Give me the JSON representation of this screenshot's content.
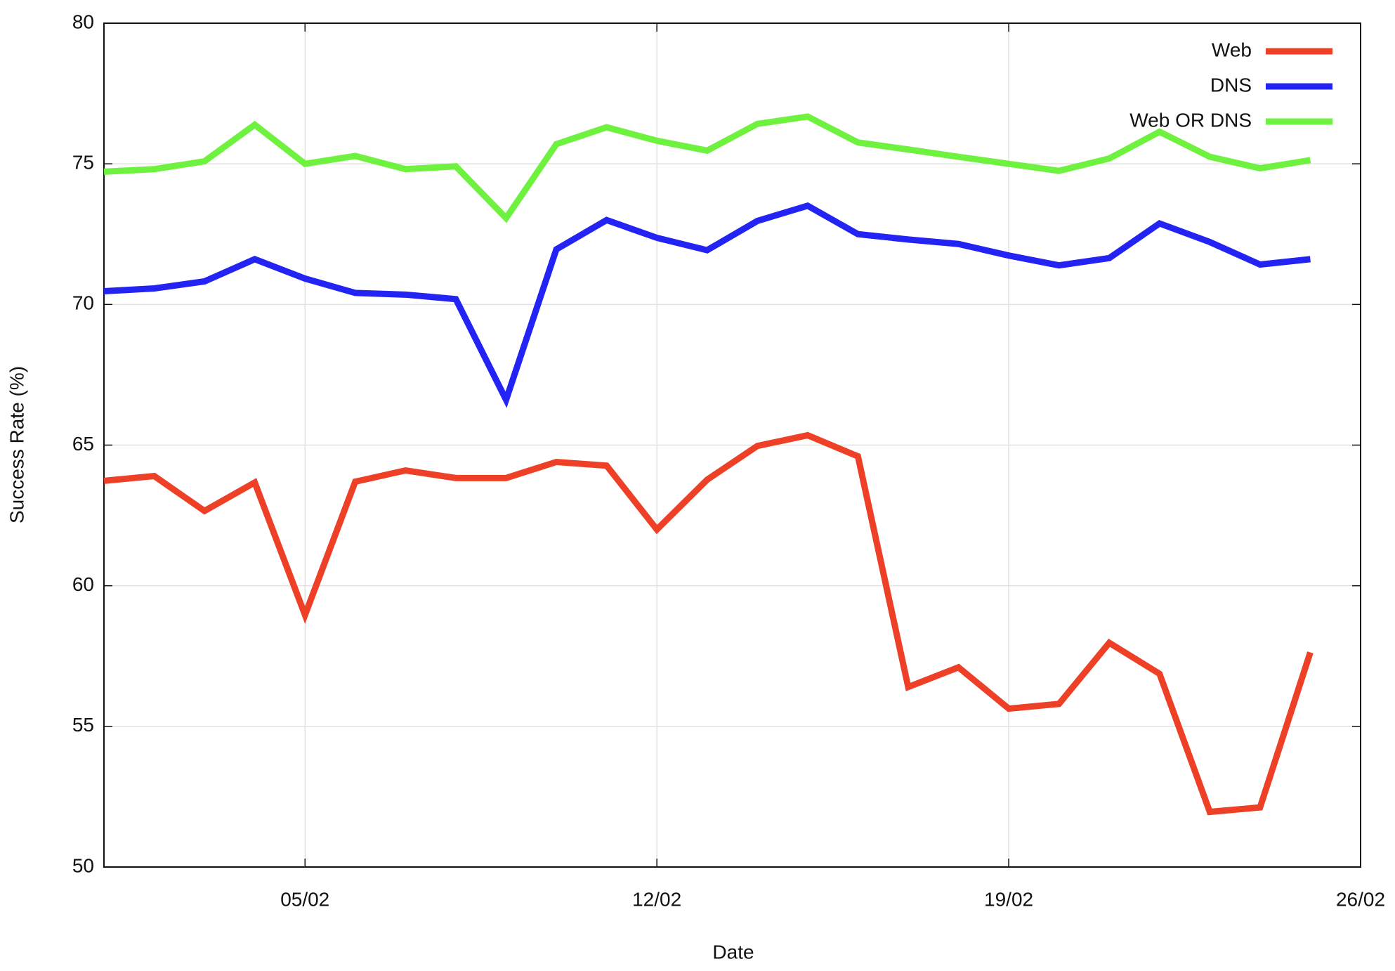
{
  "chart_data": {
    "type": "line",
    "x_label": "Date",
    "y_label": "Success Rate (%)",
    "x": [
      "01/02",
      "02/02",
      "03/02",
      "04/02",
      "05/02",
      "06/02",
      "07/02",
      "08/02",
      "09/02",
      "10/02",
      "11/02",
      "12/02",
      "13/02",
      "14/02",
      "15/02",
      "16/02",
      "17/02",
      "18/02",
      "19/02",
      "20/02",
      "21/02",
      "22/02",
      "23/02",
      "24/02",
      "25/02"
    ],
    "xlim": [
      "01/02",
      "26/02"
    ],
    "xticks": [
      "05/02",
      "12/02",
      "19/02",
      "26/02"
    ],
    "ylim": [
      50,
      80
    ],
    "yticks": [
      50,
      55,
      60,
      65,
      70,
      75,
      80
    ],
    "grid": true,
    "legend": "top-right",
    "series": [
      {
        "name": "Web",
        "color": "#ee4027",
        "values": [
          63.73,
          63.9,
          62.66,
          63.67,
          58.96,
          63.7,
          64.1,
          63.83,
          63.83,
          64.4,
          64.27,
          62.0,
          63.77,
          64.97,
          65.35,
          64.6,
          56.4,
          57.1,
          55.63,
          55.8,
          57.97,
          56.87,
          51.96,
          52.12,
          57.63
        ]
      },
      {
        "name": "DNS",
        "color": "#2323f4",
        "values": [
          70.47,
          70.57,
          70.82,
          71.61,
          70.92,
          70.41,
          70.35,
          70.19,
          66.61,
          71.96,
          73.0,
          72.37,
          71.93,
          72.97,
          73.51,
          72.5,
          72.31,
          72.15,
          71.74,
          71.39,
          71.65,
          72.88,
          72.22,
          71.42,
          71.61
        ]
      },
      {
        "name": "Web OR DNS",
        "color": "#6ff23f",
        "values": [
          74.72,
          74.81,
          75.09,
          76.39,
          75.0,
          75.28,
          74.81,
          74.91,
          73.07,
          75.7,
          76.3,
          75.82,
          75.47,
          76.42,
          76.68,
          75.76,
          75.51,
          75.25,
          75.0,
          74.75,
          75.19,
          76.14,
          75.25,
          74.84,
          75.13
        ]
      }
    ]
  }
}
